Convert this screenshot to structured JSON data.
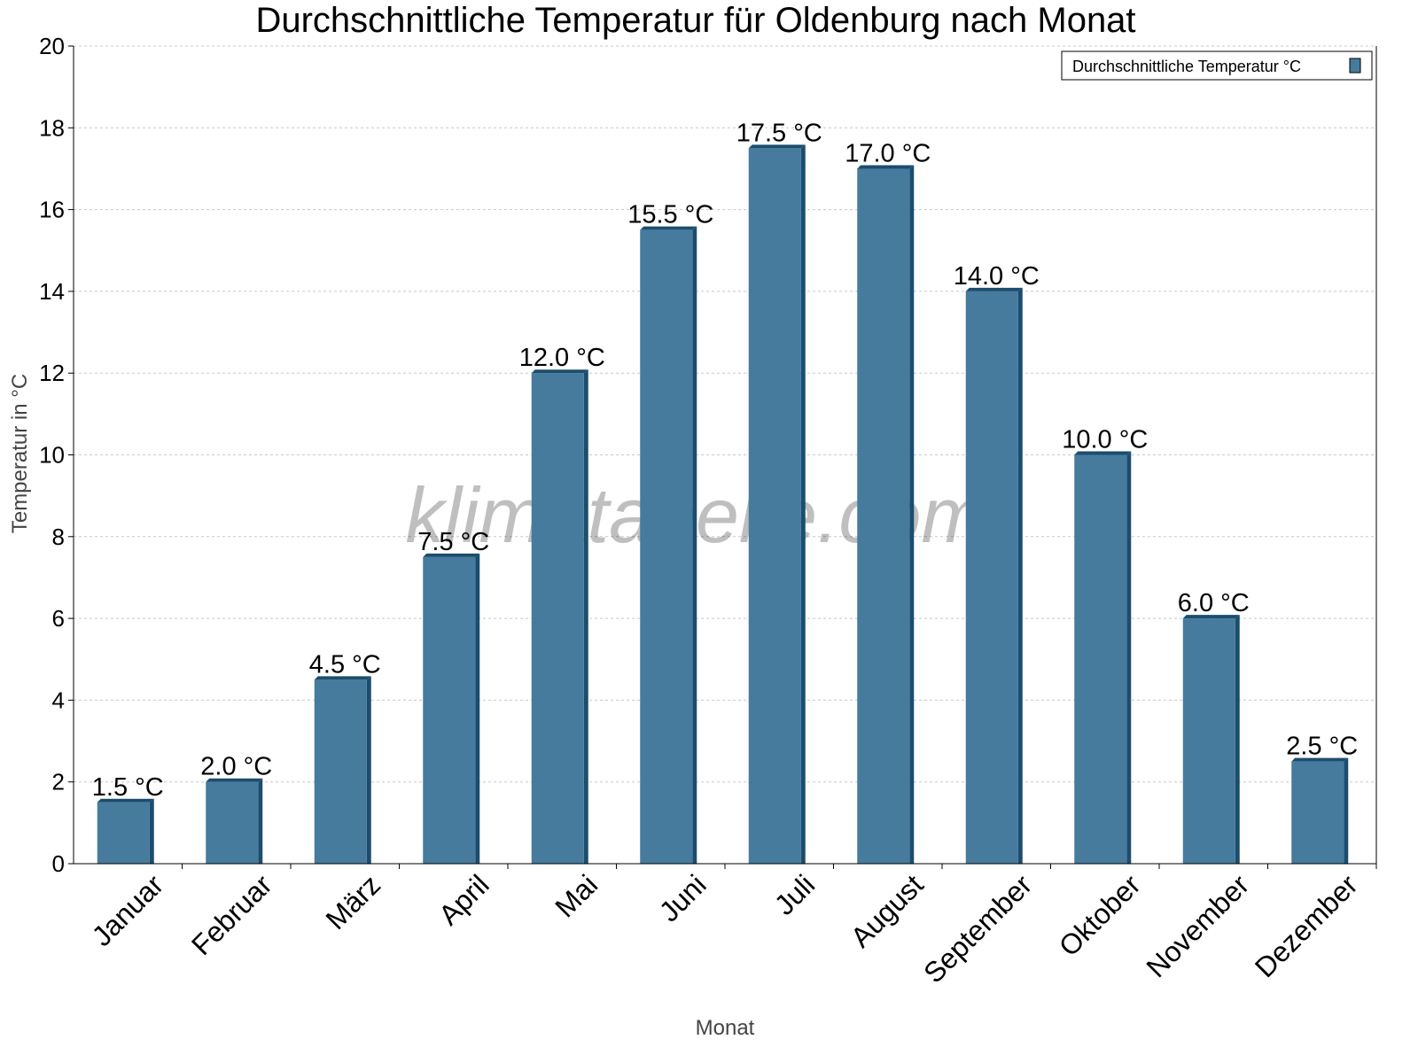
{
  "chart_data": {
    "type": "bar",
    "title": "Durchschnittliche Temperatur für Oldenburg nach Monat",
    "xlabel": "Monat",
    "ylabel": "Temperatur in °C",
    "categories": [
      "Januar",
      "Februar",
      "März",
      "April",
      "Mai",
      "Juni",
      "Juli",
      "August",
      "September",
      "Oktober",
      "November",
      "Dezember"
    ],
    "series": [
      {
        "name": "Durchschnittliche Temperatur °C",
        "values": [
          1.5,
          2.0,
          4.5,
          7.5,
          12.0,
          15.5,
          17.5,
          17.0,
          14.0,
          10.0,
          6.0,
          2.5
        ]
      }
    ],
    "data_labels": [
      "1.5 °C",
      "2.0 °C",
      "4.5 °C",
      "7.5 °C",
      "12.0 °C",
      "15.5 °C",
      "17.5 °C",
      "17.0 °C",
      "14.0 °C",
      "10.0 °C",
      "6.0 °C",
      "2.5 °C"
    ],
    "ylim": [
      0,
      20
    ],
    "yticks": [
      "0",
      "2",
      "4",
      "6",
      "8",
      "10",
      "12",
      "14",
      "16",
      "18",
      "20"
    ],
    "grid": true,
    "legend_position": "top-right",
    "colors": {
      "bar_front": "#467b9d",
      "bar_side": "#1b4d6e"
    },
    "watermark": "klimatabelle.com"
  }
}
